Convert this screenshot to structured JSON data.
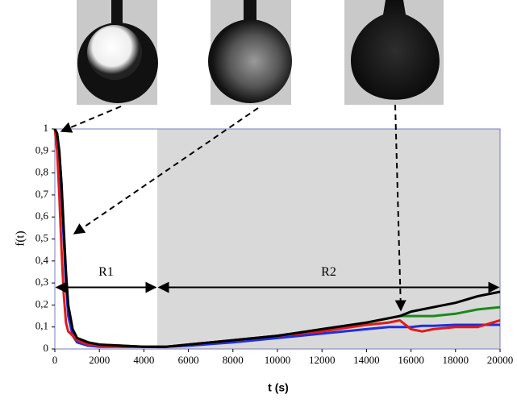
{
  "chart_data": {
    "type": "line",
    "x_label": "t (s)",
    "y_label": "f(t)",
    "xlim": [
      0,
      20000
    ],
    "xticks": [
      0,
      2000,
      4000,
      6000,
      8000,
      10000,
      12000,
      14000,
      16000,
      18000,
      20000
    ],
    "ylim": [
      0,
      1
    ],
    "yticks": [
      0,
      {
        "value": 0.1,
        "label": "0,1"
      },
      {
        "value": 0.2,
        "label": "0,2"
      },
      {
        "value": 0.3,
        "label": "0,3"
      },
      {
        "value": 0.4,
        "label": "0,4"
      },
      {
        "value": 0.5,
        "label": "0,5"
      },
      {
        "value": 0.6,
        "label": "0,6"
      },
      {
        "value": 0.7,
        "label": "0,7"
      },
      {
        "value": 0.8,
        "label": "0,8"
      },
      {
        "value": 0.9,
        "label": "0,9"
      },
      1
    ],
    "regions": [
      {
        "label": "R1",
        "xlim": [
          0,
          4600
        ],
        "shaded": false
      },
      {
        "label": "R2",
        "xlim": [
          4600,
          20000
        ],
        "shaded": true,
        "color": "#d9d9d9"
      }
    ],
    "x": [
      0,
      100,
      200,
      300,
      400,
      500,
      600,
      800,
      1000,
      1500,
      2000,
      3000,
      4000,
      5000,
      6000,
      8000,
      10000,
      12000,
      14000,
      15000,
      15500,
      16000,
      16500,
      17000,
      18000,
      19000,
      20000
    ],
    "series": [
      {
        "color": "#1a8a1a",
        "values": [
          1,
          0.98,
          0.9,
          0.74,
          0.53,
          0.33,
          0.18,
          0.08,
          0.05,
          0.03,
          0.02,
          0.015,
          0.01,
          0.01,
          0.02,
          0.04,
          0.06,
          0.09,
          0.12,
          0.14,
          0.15,
          0.15,
          0.15,
          0.15,
          0.16,
          0.18,
          0.19
        ]
      },
      {
        "color": "#1f2fe0",
        "values": [
          1,
          0.97,
          0.88,
          0.7,
          0.5,
          0.3,
          0.15,
          0.06,
          0.03,
          0.015,
          0.01,
          0.01,
          0.01,
          0.01,
          0.015,
          0.03,
          0.05,
          0.07,
          0.09,
          0.1,
          0.1,
          0.1,
          0.105,
          0.105,
          0.11,
          0.11,
          0.11
        ]
      },
      {
        "color": "#e01a1a",
        "values": [
          1,
          0.9,
          0.7,
          0.45,
          0.25,
          0.12,
          0.08,
          0.06,
          0.04,
          0.02,
          0.015,
          0.01,
          0.01,
          0.01,
          0.02,
          0.04,
          0.06,
          0.08,
          0.11,
          0.12,
          0.13,
          0.09,
          0.08,
          0.09,
          0.1,
          0.1,
          0.13
        ]
      },
      {
        "color": "#000000",
        "values": [
          1,
          0.98,
          0.9,
          0.75,
          0.55,
          0.35,
          0.2,
          0.09,
          0.05,
          0.03,
          0.02,
          0.015,
          0.01,
          0.01,
          0.02,
          0.04,
          0.06,
          0.09,
          0.12,
          0.14,
          0.15,
          0.17,
          0.18,
          0.19,
          0.21,
          0.24,
          0.26
        ]
      }
    ]
  }
}
